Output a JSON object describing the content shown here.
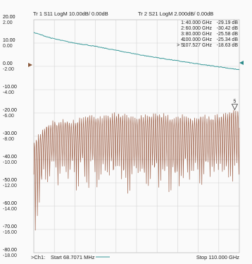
{
  "header": {
    "trace1": "Tr 1  S11 LogM 10.00dB/  0.00dB",
    "trace2": "Tr 2  S21 LogM 2.000dB/  0.00dB"
  },
  "markers": [
    {
      "id": "1:",
      "freq": "40.000 GHz",
      "value": "-29.19 dB"
    },
    {
      "id": "2:",
      "freq": "60.000 GHz",
      "value": "-30.42 dB"
    },
    {
      "id": "3:",
      "freq": "80.000 GHz",
      "value": "-25.58 dB"
    },
    {
      "id": "4:",
      "freq": "100.000 GHz",
      "value": "-25.34 dB"
    },
    {
      "id": "> 5:",
      "freq": "107.527 GHz",
      "value": "-18.63 dB"
    }
  ],
  "footer": {
    "channel": ">Ch1:",
    "start": "Start  68.7071 MHz",
    "stop": "Stop  110.000 GHz"
  },
  "colors": {
    "s11_trace": "#a0644c",
    "s21_trace": "#3a9a9a",
    "grid": "#d4d4d4",
    "background": "#fafafa"
  },
  "chart_data": {
    "type": "line",
    "title": "",
    "xlabel": "",
    "ylabel": "",
    "xlim": [
      0.0687,
      110.0
    ],
    "x_unit": "GHz",
    "grid": true,
    "axes": {
      "s11_ticks": [
        "20.00",
        "10.00",
        "0.00",
        "-10.00",
        "-20.00",
        "-30.00",
        "-40.00",
        "-50.00",
        "-60.00",
        "-70.00",
        "-80.00"
      ],
      "s21_ticks": [
        "2.00",
        "0.00",
        "-2.00",
        "-4.00",
        "-6.00",
        "-8.00",
        "-10.00",
        "-12.00",
        "-14.00",
        "-16.00",
        "-18.00"
      ],
      "s11_ylim": [
        -80,
        20
      ],
      "s21_ylim": [
        -18,
        2
      ]
    },
    "series": [
      {
        "name": "S11",
        "unit": "dB",
        "x": [
          0.07,
          5,
          10,
          15,
          20,
          25,
          30,
          35,
          40,
          45,
          50,
          55,
          60,
          65,
          70,
          75,
          80,
          85,
          90,
          95,
          100,
          105,
          107.5,
          110
        ],
        "y_envelope_top": [
          -32,
          -27,
          -24,
          -23,
          -24,
          -22,
          -21,
          -22,
          -21,
          -20,
          -21,
          -22,
          -21,
          -20,
          -21,
          -22,
          -21,
          -22,
          -21,
          -22,
          -21,
          -20,
          -18.6,
          -20
        ],
        "y_envelope_bottom": [
          -72,
          -45,
          -42,
          -43,
          -44,
          -45,
          -43,
          -44,
          -46,
          -44,
          -48,
          -45,
          -47,
          -44,
          -46,
          -48,
          -45,
          -44,
          -47,
          -45,
          -43,
          -44,
          -40,
          -42
        ]
      },
      {
        "name": "S21",
        "unit": "dB",
        "x": [
          0.07,
          10,
          20,
          30,
          40,
          50,
          60,
          70,
          80,
          90,
          100,
          110
        ],
        "y": [
          0.9,
          0.4,
          0.05,
          -0.2,
          -0.5,
          -0.8,
          -1.1,
          -1.35,
          -1.6,
          -1.85,
          -2.05,
          -2.3
        ]
      }
    ],
    "marker_points": [
      {
        "label": "5",
        "x": 107.527,
        "y": -18.63
      }
    ]
  }
}
